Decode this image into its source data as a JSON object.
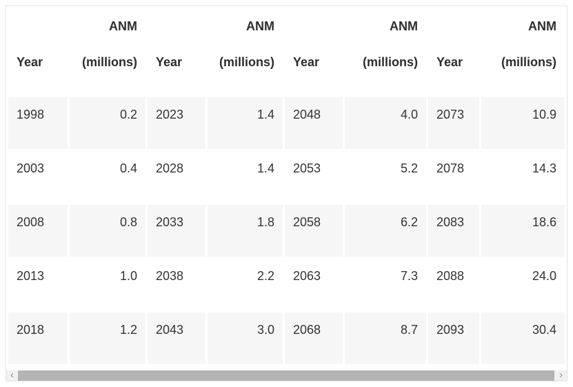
{
  "table": {
    "header": {
      "year_label": "Year",
      "anm_label_line1": "ANM",
      "anm_label_line2": "(millions)"
    },
    "rows": [
      [
        "1998",
        "0.2",
        "2023",
        "1.4",
        "2048",
        "4.0",
        "2073",
        "10.9"
      ],
      [
        "2003",
        "0.4",
        "2028",
        "1.4",
        "2053",
        "5.2",
        "2078",
        "14.3"
      ],
      [
        "2008",
        "0.8",
        "2033",
        "1.8",
        "2058",
        "6.2",
        "2083",
        "18.6"
      ],
      [
        "2013",
        "1.0",
        "2038",
        "2.2",
        "2063",
        "7.3",
        "2088",
        "24.0"
      ],
      [
        "2018",
        "1.2",
        "2043",
        "3.0",
        "2068",
        "8.7",
        "2093",
        "30.4"
      ]
    ]
  },
  "scrollbar": {
    "left_chevron": "‹",
    "right_chevron": "›"
  },
  "colors": {
    "stripe_row": "#f6f6f6",
    "table_border": "#e2e2e2",
    "text": "#333333",
    "scrollbar_thumb": "#b4b4b4",
    "scrollbar_track": "#f1f1f1"
  },
  "chart_data": {
    "type": "table",
    "title": "",
    "columns": [
      "Year",
      "ANM (millions)"
    ],
    "layout": "4 repeated Year / ANM (millions) column pairs, 5 rows, read down each pair; horizontal scrollbar at bottom",
    "x": [
      1998,
      2003,
      2008,
      2013,
      2018,
      2023,
      2028,
      2033,
      2038,
      2043,
      2048,
      2053,
      2058,
      2063,
      2068,
      2073,
      2078,
      2083,
      2088,
      2093
    ],
    "series": [
      {
        "name": "ANM (millions)",
        "values": [
          0.2,
          0.4,
          0.8,
          1.0,
          1.2,
          1.4,
          1.4,
          1.8,
          2.2,
          3.0,
          4.0,
          5.2,
          6.2,
          7.3,
          8.7,
          10.9,
          14.3,
          18.6,
          24.0,
          30.4
        ]
      }
    ]
  }
}
